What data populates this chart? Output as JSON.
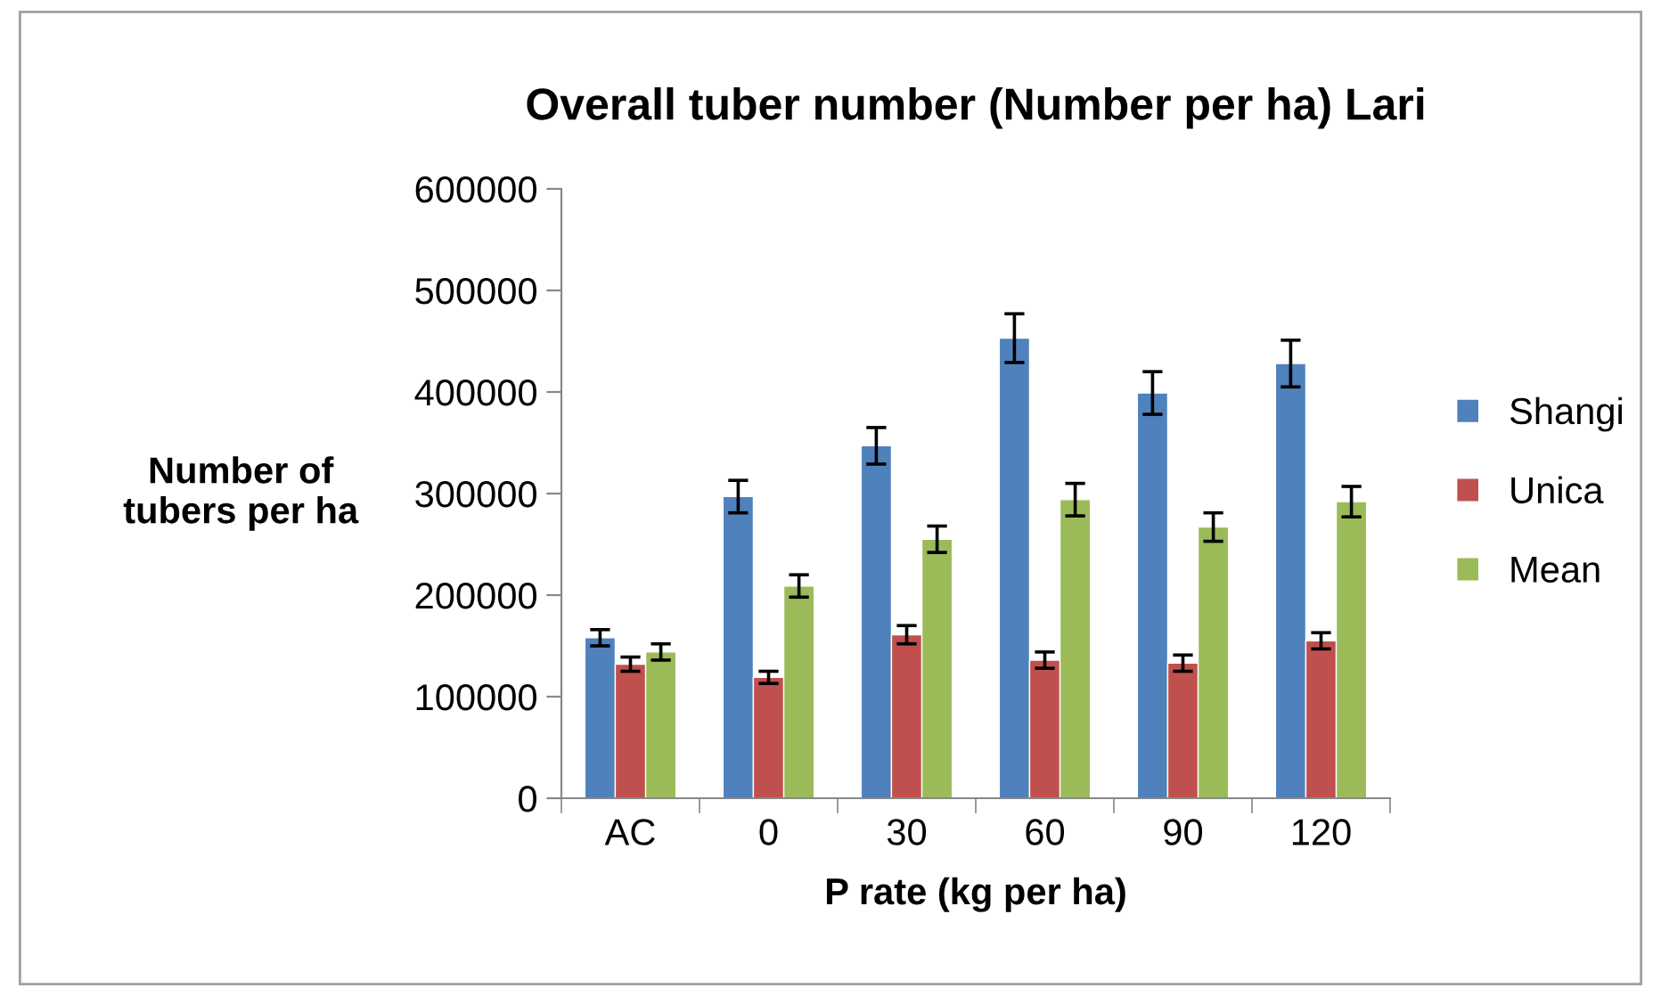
{
  "chart_data": {
    "type": "bar",
    "title": "Overall tuber number (Number per ha) Lari",
    "xlabel": "P rate (kg per ha)",
    "ylabel": "Number of\ntubers per ha",
    "categories": [
      "AC",
      "0",
      "30",
      "60",
      "90",
      "120"
    ],
    "series": [
      {
        "name": "Shangi",
        "color": "#4f81bd",
        "values": [
          158000,
          297000,
          347000,
          453000,
          399000,
          428000
        ],
        "errors": [
          8000,
          16000,
          18000,
          24000,
          21000,
          23000
        ]
      },
      {
        "name": "Unica",
        "color": "#c0504d",
        "values": [
          132000,
          119000,
          161000,
          136000,
          133000,
          155000
        ],
        "errors": [
          7000,
          6000,
          9000,
          8000,
          8000,
          8000
        ]
      },
      {
        "name": "Mean",
        "color": "#9bbb59",
        "values": [
          144000,
          209000,
          255000,
          294000,
          267000,
          292000
        ],
        "errors": [
          8000,
          11000,
          13000,
          16000,
          14000,
          15000
        ]
      }
    ],
    "ylim": [
      0,
      600000
    ],
    "yticks": [
      0,
      100000,
      200000,
      300000,
      400000,
      500000,
      600000
    ],
    "grid": false,
    "legend": "right"
  }
}
